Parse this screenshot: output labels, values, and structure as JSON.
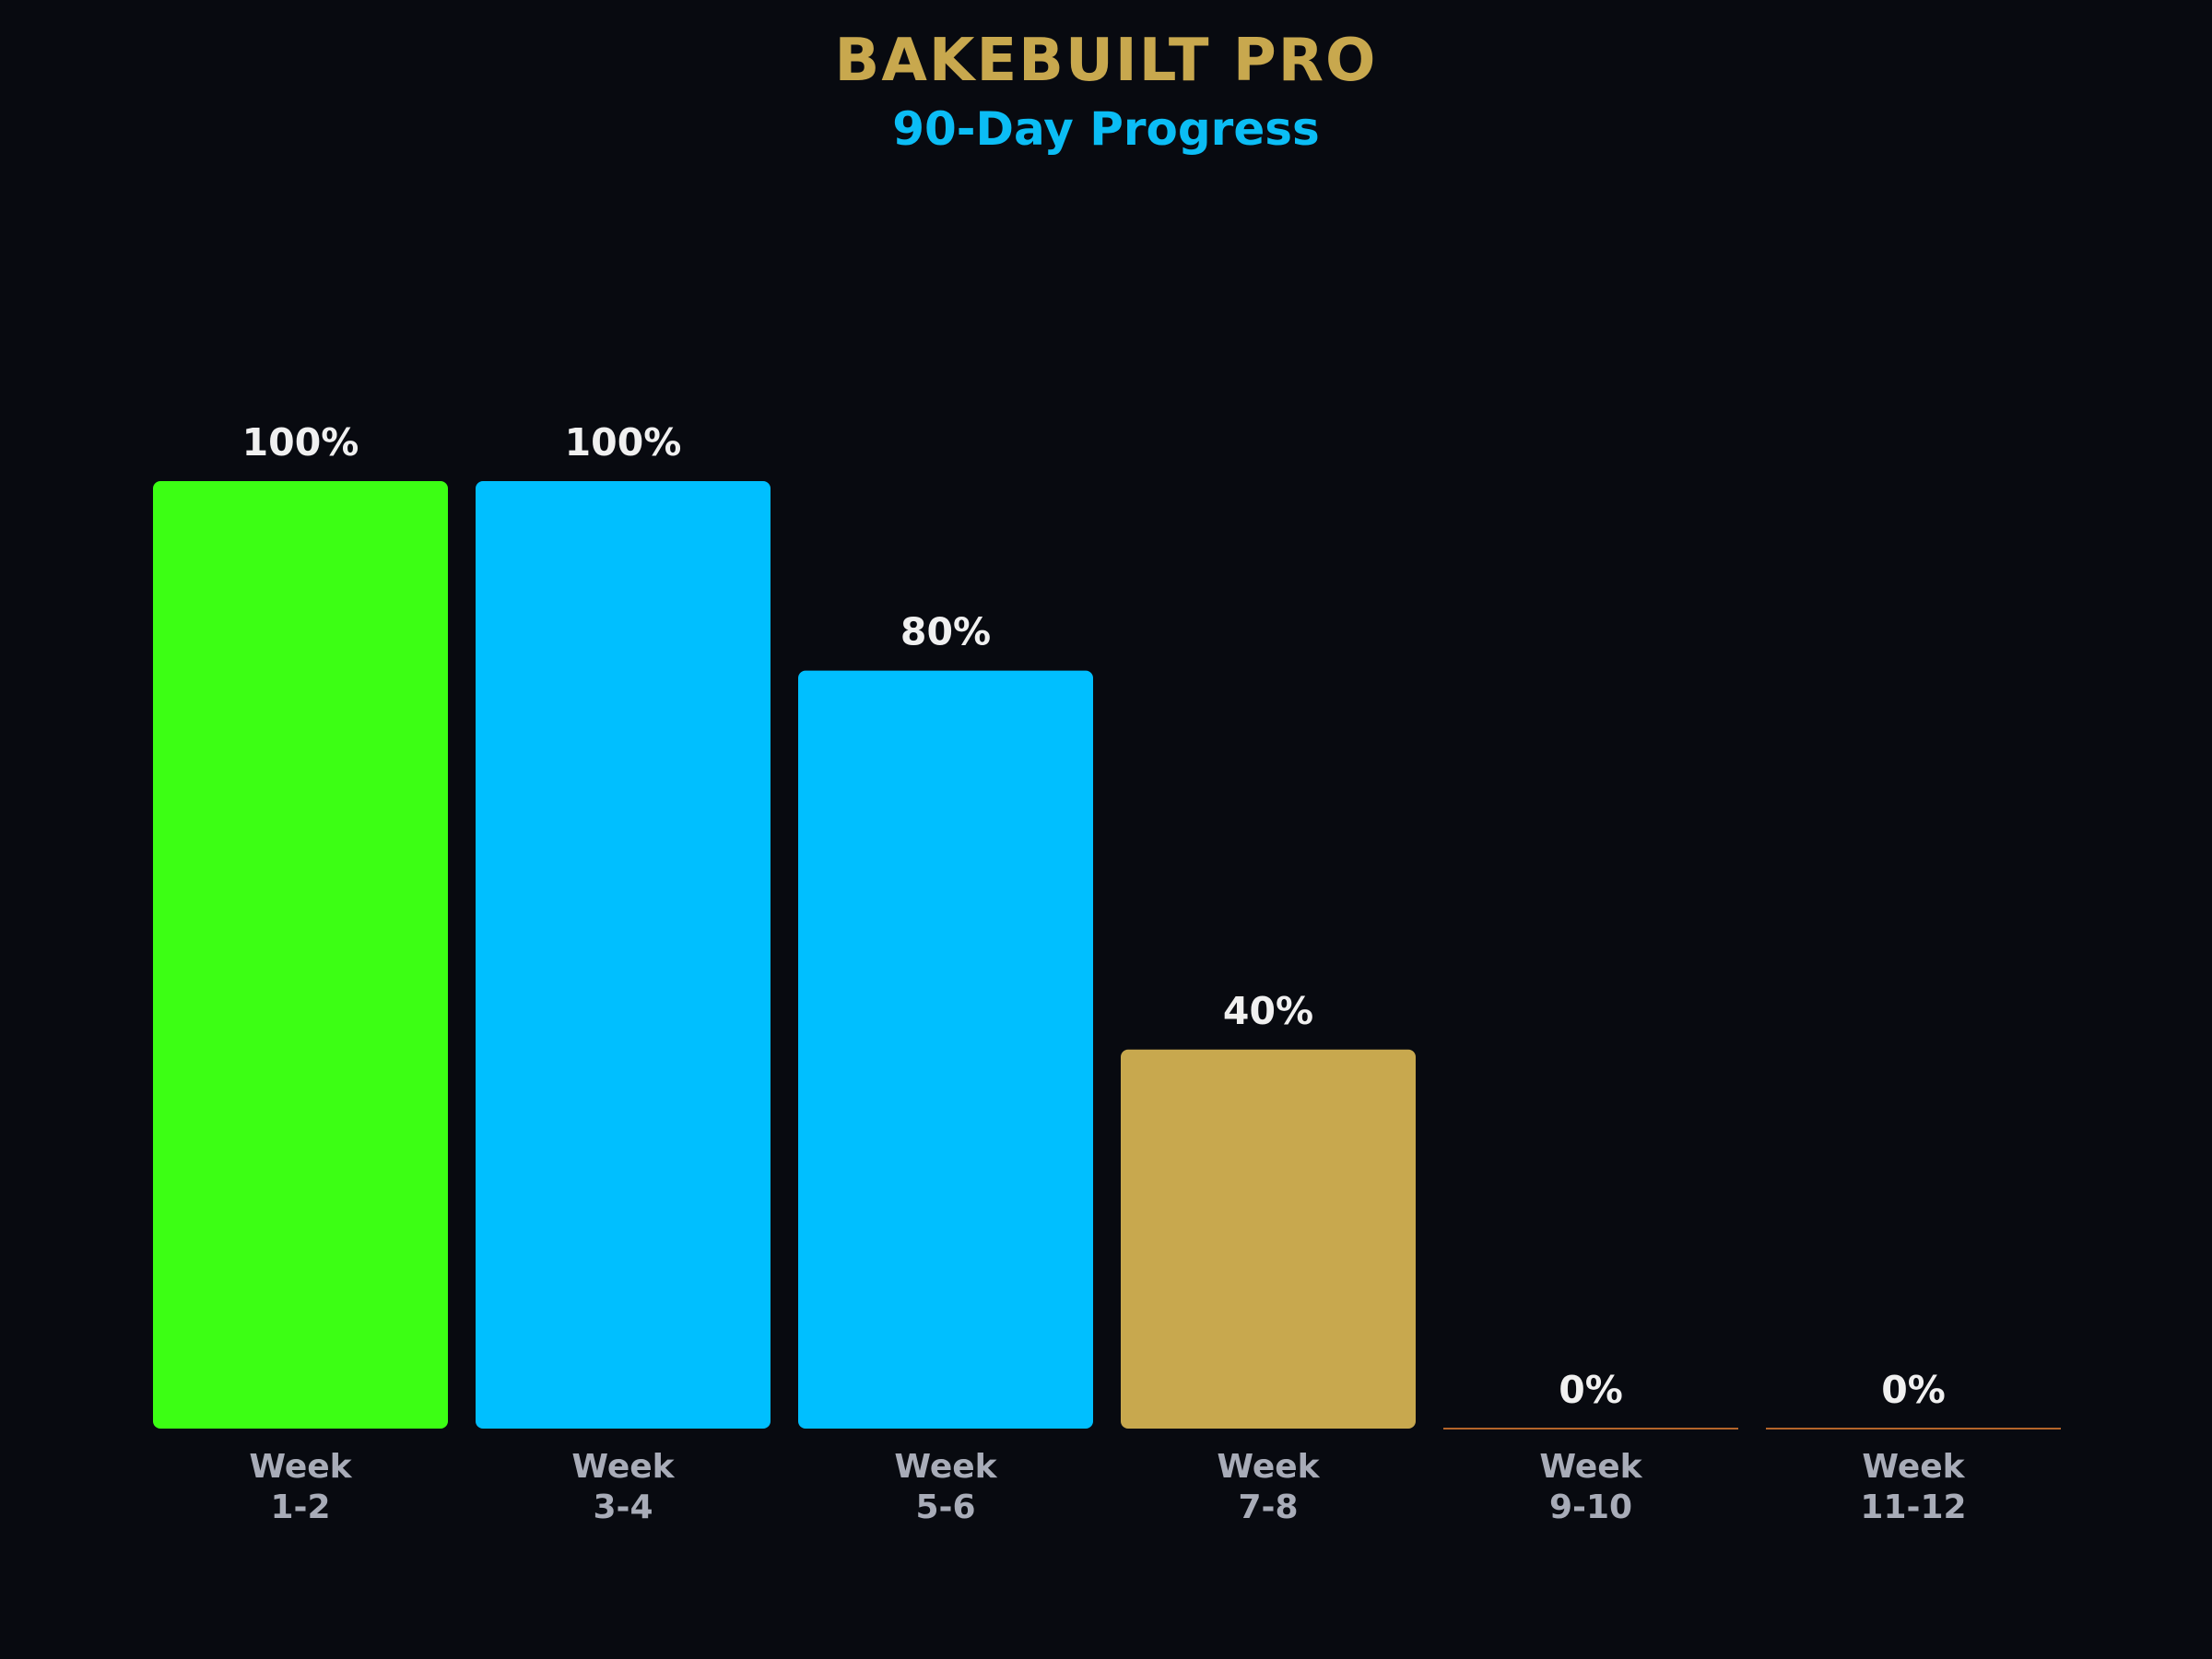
{
  "header": {
    "title": "BAKEBUILT PRO",
    "subtitle": "90-Day Progress"
  },
  "colors": {
    "background": "#080a10",
    "title": "#c8a84e",
    "subtitle": "#0bbdf5",
    "zero_baseline": "#b4642a"
  },
  "chart_data": {
    "type": "bar",
    "title": "BAKEBUILT PRO",
    "subtitle": "90-Day Progress",
    "xlabel": "",
    "ylabel": "",
    "ylim": [
      0,
      100
    ],
    "grid": false,
    "legend": "none",
    "categories": [
      [
        "Week",
        "1-2"
      ],
      [
        "Week",
        "3-4"
      ],
      [
        "Week",
        "5-6"
      ],
      [
        "Week",
        "7-8"
      ],
      [
        "Week",
        "9-10"
      ],
      [
        "Week",
        "11-12"
      ]
    ],
    "values": [
      100,
      100,
      80,
      40,
      0,
      0
    ],
    "value_labels": [
      "100%",
      "100%",
      "80%",
      "40%",
      "0%",
      "0%"
    ],
    "bar_colors": [
      "#3cff14",
      "#00bfff",
      "#00bfff",
      "#c8a84e",
      "#b4642a",
      "#b4642a"
    ]
  }
}
